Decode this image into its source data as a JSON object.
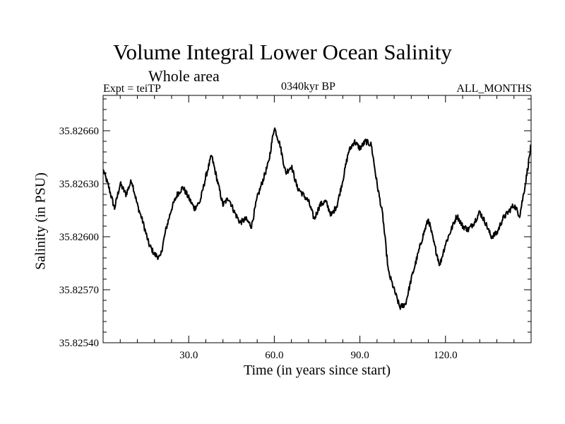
{
  "chart_data": {
    "type": "line",
    "title": "Volume Integral Lower Ocean Salinity",
    "subtitle": "Whole area",
    "annotations": {
      "left": "Expt = teiTP",
      "center": "0340kyr BP",
      "right": "ALL_MONTHS"
    },
    "xlabel": "Time (in years since start)",
    "ylabel": "Salinity (in PSU)",
    "xlim": [
      0,
      150
    ],
    "ylim": [
      35.8254,
      35.8268
    ],
    "xticks": [
      30,
      60,
      90,
      120
    ],
    "xtick_labels": [
      "30.0",
      "60.0",
      "90.0",
      "120.0"
    ],
    "yticks": [
      35.8254,
      35.8257,
      35.826,
      35.8263,
      35.8266
    ],
    "ytick_labels": [
      "35.82540",
      "35.82570",
      "35.82600",
      "35.82630",
      "35.82660"
    ],
    "series": [
      {
        "name": "Salinity",
        "points": [
          [
            0,
            35.82638
          ],
          [
            2,
            35.82628
          ],
          [
            4,
            35.82616
          ],
          [
            6,
            35.8263
          ],
          [
            8,
            35.82624
          ],
          [
            10,
            35.82632
          ],
          [
            12,
            35.82618
          ],
          [
            14,
            35.82608
          ],
          [
            16,
            35.82596
          ],
          [
            18,
            35.8259
          ],
          [
            20,
            35.82588
          ],
          [
            22,
            35.82604
          ],
          [
            24,
            35.82616
          ],
          [
            26,
            35.82624
          ],
          [
            28,
            35.82628
          ],
          [
            30,
            35.82622
          ],
          [
            32,
            35.82616
          ],
          [
            34,
            35.8262
          ],
          [
            36,
            35.82634
          ],
          [
            38,
            35.82646
          ],
          [
            40,
            35.82632
          ],
          [
            42,
            35.82618
          ],
          [
            44,
            35.82622
          ],
          [
            46,
            35.82614
          ],
          [
            48,
            35.82608
          ],
          [
            50,
            35.8261
          ],
          [
            52,
            35.82606
          ],
          [
            54,
            35.82622
          ],
          [
            56,
            35.82632
          ],
          [
            58,
            35.82642
          ],
          [
            60,
            35.82662
          ],
          [
            62,
            35.82652
          ],
          [
            64,
            35.82636
          ],
          [
            66,
            35.8264
          ],
          [
            68,
            35.82628
          ],
          [
            70,
            35.82624
          ],
          [
            72,
            35.8262
          ],
          [
            74,
            35.8261
          ],
          [
            76,
            35.82618
          ],
          [
            78,
            35.8262
          ],
          [
            80,
            35.82612
          ],
          [
            82,
            35.82618
          ],
          [
            84,
            35.82632
          ],
          [
            86,
            35.82648
          ],
          [
            88,
            35.82654
          ],
          [
            90,
            35.8265
          ],
          [
            92,
            35.82654
          ],
          [
            94,
            35.82652
          ],
          [
            96,
            35.8263
          ],
          [
            98,
            35.82612
          ],
          [
            100,
            35.8258
          ],
          [
            102,
            35.8257
          ],
          [
            104,
            35.8256
          ],
          [
            106,
            35.82562
          ],
          [
            108,
            35.82576
          ],
          [
            110,
            35.82588
          ],
          [
            112,
            35.826
          ],
          [
            114,
            35.8261
          ],
          [
            116,
            35.82596
          ],
          [
            118,
            35.82584
          ],
          [
            120,
            35.82596
          ],
          [
            122,
            35.82604
          ],
          [
            124,
            35.82612
          ],
          [
            126,
            35.82606
          ],
          [
            128,
            35.82604
          ],
          [
            130,
            35.82608
          ],
          [
            132,
            35.82614
          ],
          [
            134,
            35.82608
          ],
          [
            136,
            35.826
          ],
          [
            138,
            35.82602
          ],
          [
            140,
            35.8261
          ],
          [
            142,
            35.82614
          ],
          [
            144,
            35.82618
          ],
          [
            146,
            35.82612
          ],
          [
            148,
            35.8263
          ],
          [
            150,
            35.82652
          ]
        ]
      }
    ],
    "grid": false,
    "legend": "none",
    "line_color": "#000000"
  }
}
